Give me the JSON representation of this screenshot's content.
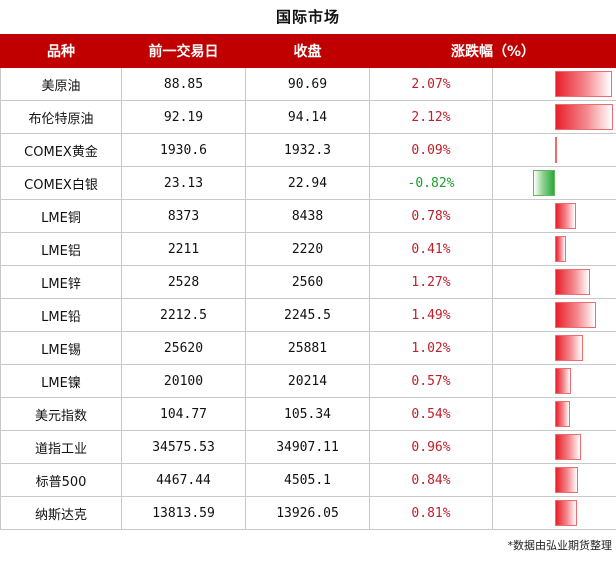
{
  "title": "国际市场",
  "headers": {
    "product": "品种",
    "previous": "前一交易日",
    "close": "收盘",
    "change": "涨跌幅（%）"
  },
  "rows": [
    {
      "name": "美原油",
      "prev": "88.85",
      "close": "90.69",
      "change": "2.07%",
      "value": 2.07
    },
    {
      "name": "布伦特原油",
      "prev": "92.19",
      "close": "94.14",
      "change": "2.12%",
      "value": 2.12
    },
    {
      "name": "COMEX黄金",
      "prev": "1930.6",
      "close": "1932.3",
      "change": "0.09%",
      "value": 0.09
    },
    {
      "name": "COMEX白银",
      "prev": "23.13",
      "close": "22.94",
      "change": "-0.82%",
      "value": -0.82
    },
    {
      "name": "LME铜",
      "prev": "8373",
      "close": "8438",
      "change": "0.78%",
      "value": 0.78
    },
    {
      "name": "LME铝",
      "prev": "2211",
      "close": "2220",
      "change": "0.41%",
      "value": 0.41
    },
    {
      "name": "LME锌",
      "prev": "2528",
      "close": "2560",
      "change": "1.27%",
      "value": 1.27
    },
    {
      "name": "LME铅",
      "prev": "2212.5",
      "close": "2245.5",
      "change": "1.49%",
      "value": 1.49
    },
    {
      "name": "LME锡",
      "prev": "25620",
      "close": "25881",
      "change": "1.02%",
      "value": 1.02
    },
    {
      "name": "LME镍",
      "prev": "20100",
      "close": "20214",
      "change": "0.57%",
      "value": 0.57
    },
    {
      "name": "美元指数",
      "prev": "104.77",
      "close": "105.34",
      "change": "0.54%",
      "value": 0.54
    },
    {
      "name": "道指工业",
      "prev": "34575.53",
      "close": "34907.11",
      "change": "0.96%",
      "value": 0.96
    },
    {
      "name": "标普500",
      "prev": "4467.44",
      "close": "4505.1",
      "change": "0.84%",
      "value": 0.84
    },
    {
      "name": "纳斯达克",
      "prev": "13813.59",
      "close": "13926.05",
      "change": "0.81%",
      "value": 0.81
    }
  ],
  "colors": {
    "header_bg": "#c00000",
    "up": "#c0202a",
    "down": "#1aa02a"
  },
  "footnote": "*数据由弘业期货整理"
}
